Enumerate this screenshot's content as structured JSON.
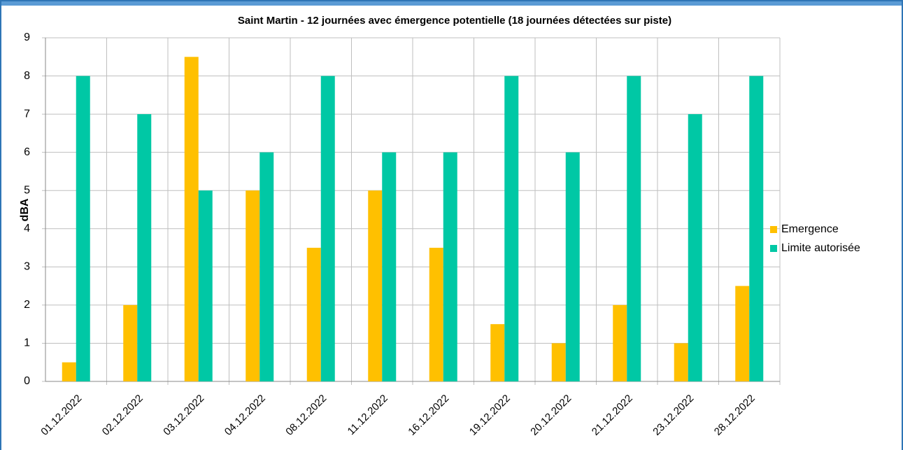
{
  "chart_data": {
    "type": "bar",
    "title": "Saint Martin - 12 journées avec émergence potentielle (18 journées détectées sur piste)",
    "y_label": "dBA",
    "categories": [
      "01.12.2022",
      "02.12.2022",
      "03.12.2022",
      "04.12.2022",
      "08.12.2022",
      "11.12.2022",
      "16.12.2022",
      "19.12.2022",
      "20.12.2022",
      "21.12.2022",
      "23.12.2022",
      "28.12.2022"
    ],
    "series": [
      {
        "name": "Emergence",
        "color": "#ffc000",
        "values": [
          0.5,
          2,
          8.5,
          5,
          3.5,
          5,
          3.5,
          1.5,
          1,
          2,
          1,
          2.5
        ]
      },
      {
        "name": "Limite autorisée",
        "color": "#00c8a5",
        "values": [
          8,
          7,
          5,
          6,
          8,
          6,
          6,
          8,
          6,
          8,
          7,
          8
        ]
      }
    ],
    "ylim": [
      0,
      9
    ],
    "yticks": [
      0,
      1,
      2,
      3,
      4,
      5,
      6,
      7,
      8,
      9
    ],
    "grid": true,
    "legend": "right"
  }
}
